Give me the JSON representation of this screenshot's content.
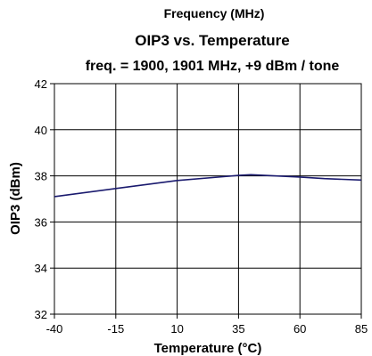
{
  "chart_data": {
    "type": "line",
    "top_label": "Frequency (MHz)",
    "title": "OIP3 vs. Temperature",
    "subtitle": "freq. = 1900, 1901 MHz, +9 dBm / tone",
    "xlabel": "Temperature (°C)",
    "ylabel": "OIP3 (dBm)",
    "x_ticks": [
      "-40",
      "-15",
      "10",
      "35",
      "60",
      "85"
    ],
    "y_ticks": [
      "32",
      "34",
      "36",
      "38",
      "40",
      "42"
    ],
    "ylim": [
      32,
      42
    ],
    "grid": true,
    "legend": "none",
    "series": [
      {
        "color": "#1a1a6e",
        "x": [
          -40,
          -15,
          10,
          35,
          40,
          60,
          70,
          85
        ],
        "y": [
          37.1,
          37.45,
          37.8,
          38.02,
          38.05,
          37.95,
          37.88,
          37.82
        ]
      }
    ]
  }
}
